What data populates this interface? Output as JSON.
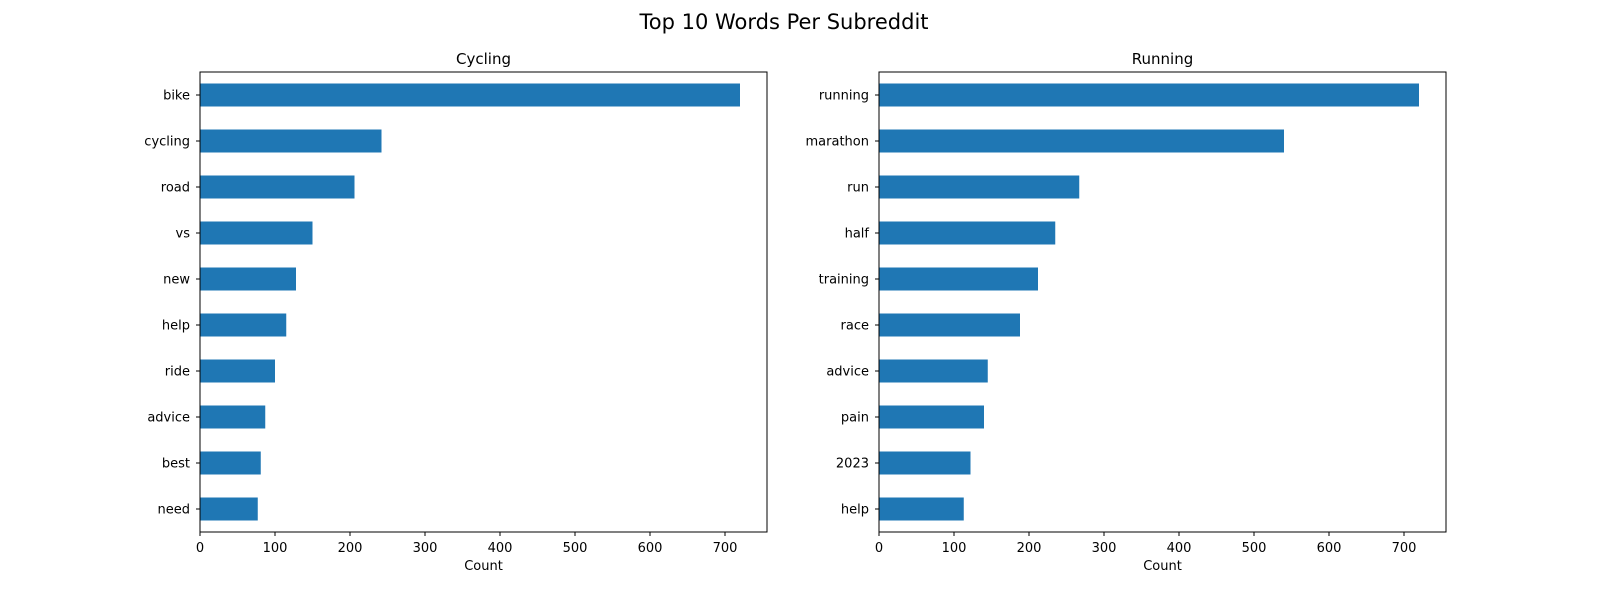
{
  "figure": {
    "title": "Top 10 Words Per Subreddit",
    "bar_color": "#1f77b4"
  },
  "chart_data": [
    {
      "type": "bar",
      "orientation": "horizontal",
      "title": "Cycling",
      "xlabel": "Count",
      "ylabel": "",
      "categories": [
        "bike",
        "cycling",
        "road",
        "vs",
        "new",
        "help",
        "ride",
        "advice",
        "best",
        "need"
      ],
      "values": [
        720,
        242,
        206,
        150,
        128,
        115,
        100,
        87,
        81,
        77
      ],
      "xlim": [
        0,
        756
      ],
      "xticks": [
        0,
        100,
        200,
        300,
        400,
        500,
        600,
        700
      ],
      "grid": false,
      "legend": "none"
    },
    {
      "type": "bar",
      "orientation": "horizontal",
      "title": "Running",
      "xlabel": "Count",
      "ylabel": "",
      "categories": [
        "running",
        "marathon",
        "run",
        "half",
        "training",
        "race",
        "advice",
        "pain",
        "2023",
        "help"
      ],
      "values": [
        720,
        540,
        267,
        235,
        212,
        188,
        145,
        140,
        122,
        113
      ],
      "xlim": [
        0,
        756
      ],
      "xticks": [
        0,
        100,
        200,
        300,
        400,
        500,
        600,
        700
      ],
      "grid": false,
      "legend": "none"
    }
  ]
}
